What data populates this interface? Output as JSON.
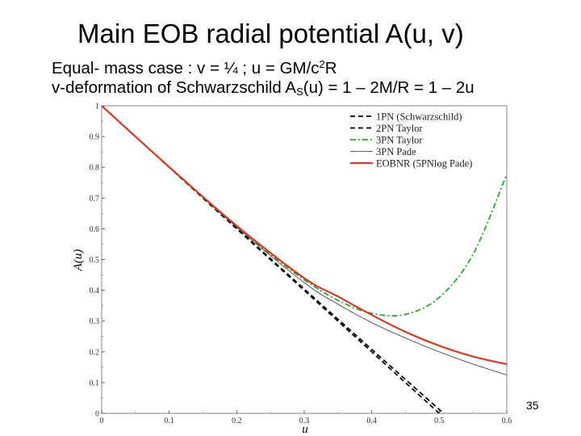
{
  "slide": {
    "title": "Main EOB radial potential A(u, v)",
    "line1": "Equal- mass case : v = ¼  ; u = GM/c2R",
    "line1_pre": "Equal- mass case : v = ¼  ; u = GM/c",
    "line1_sup": "2",
    "line1_post": "R",
    "line2_pre": "v-deformation of Schwarzschild A",
    "line2_sub": "S",
    "line2_post": "(u) = 1 – 2M/R = 1 – 2u",
    "page_number": "35"
  },
  "chart_data": {
    "type": "line",
    "xlabel": "u",
    "ylabel": "A(u)",
    "xlim": [
      0,
      0.6
    ],
    "ylim": [
      0,
      1
    ],
    "xticks": [
      "0",
      "0.1",
      "0.2",
      "0.3",
      "0.4",
      "0.5",
      "0.6"
    ],
    "yticks": [
      "0",
      "0.1",
      "0.2",
      "0.3",
      "0.4",
      "0.5",
      "0.6",
      "0.7",
      "0.8",
      "0.9",
      "1"
    ],
    "legend_position": "top-right",
    "series": [
      {
        "name": "1PN (Schwarzschild)",
        "color": "#000000",
        "style": "dashed",
        "x": [
          0,
          0.5
        ],
        "y": [
          1,
          0
        ]
      },
      {
        "name": "2PN Taylor",
        "color": "#000000",
        "style": "dashed",
        "x": [
          0,
          0.1,
          0.2,
          0.3,
          0.4,
          0.5,
          0.54
        ],
        "y": [
          1,
          0.8005,
          0.602,
          0.4045,
          0.208,
          0.0125,
          -0.066
        ]
      },
      {
        "name": "3PN Taylor",
        "color": "#33a033",
        "style": "dashdot",
        "x": [
          0,
          0.05,
          0.1,
          0.15,
          0.2,
          0.25,
          0.3,
          0.35,
          0.4,
          0.45,
          0.5,
          0.55,
          0.6
        ],
        "y": [
          1,
          0.9001,
          0.8009,
          0.7029,
          0.6075,
          0.5168,
          0.4345,
          0.3674,
          0.3252,
          0.3219,
          0.377,
          0.5168,
          0.777
        ]
      },
      {
        "name": "3PN Pade",
        "color": "#333333",
        "style": "solid-thin",
        "x": [
          0,
          0.1,
          0.2,
          0.3,
          0.35,
          0.4,
          0.45,
          0.5,
          0.55,
          0.6
        ],
        "y": [
          1,
          0.8,
          0.605,
          0.425,
          0.355,
          0.295,
          0.245,
          0.2,
          0.16,
          0.125
        ]
      },
      {
        "name": "EOBNR (5PNlog Pade)",
        "color": "#d23c2a",
        "style": "solid-thick",
        "x": [
          0,
          0.1,
          0.2,
          0.3,
          0.35,
          0.4,
          0.45,
          0.5,
          0.55,
          0.6
        ],
        "y": [
          1,
          0.801,
          0.61,
          0.44,
          0.38,
          0.32,
          0.265,
          0.22,
          0.185,
          0.16
        ]
      }
    ]
  }
}
